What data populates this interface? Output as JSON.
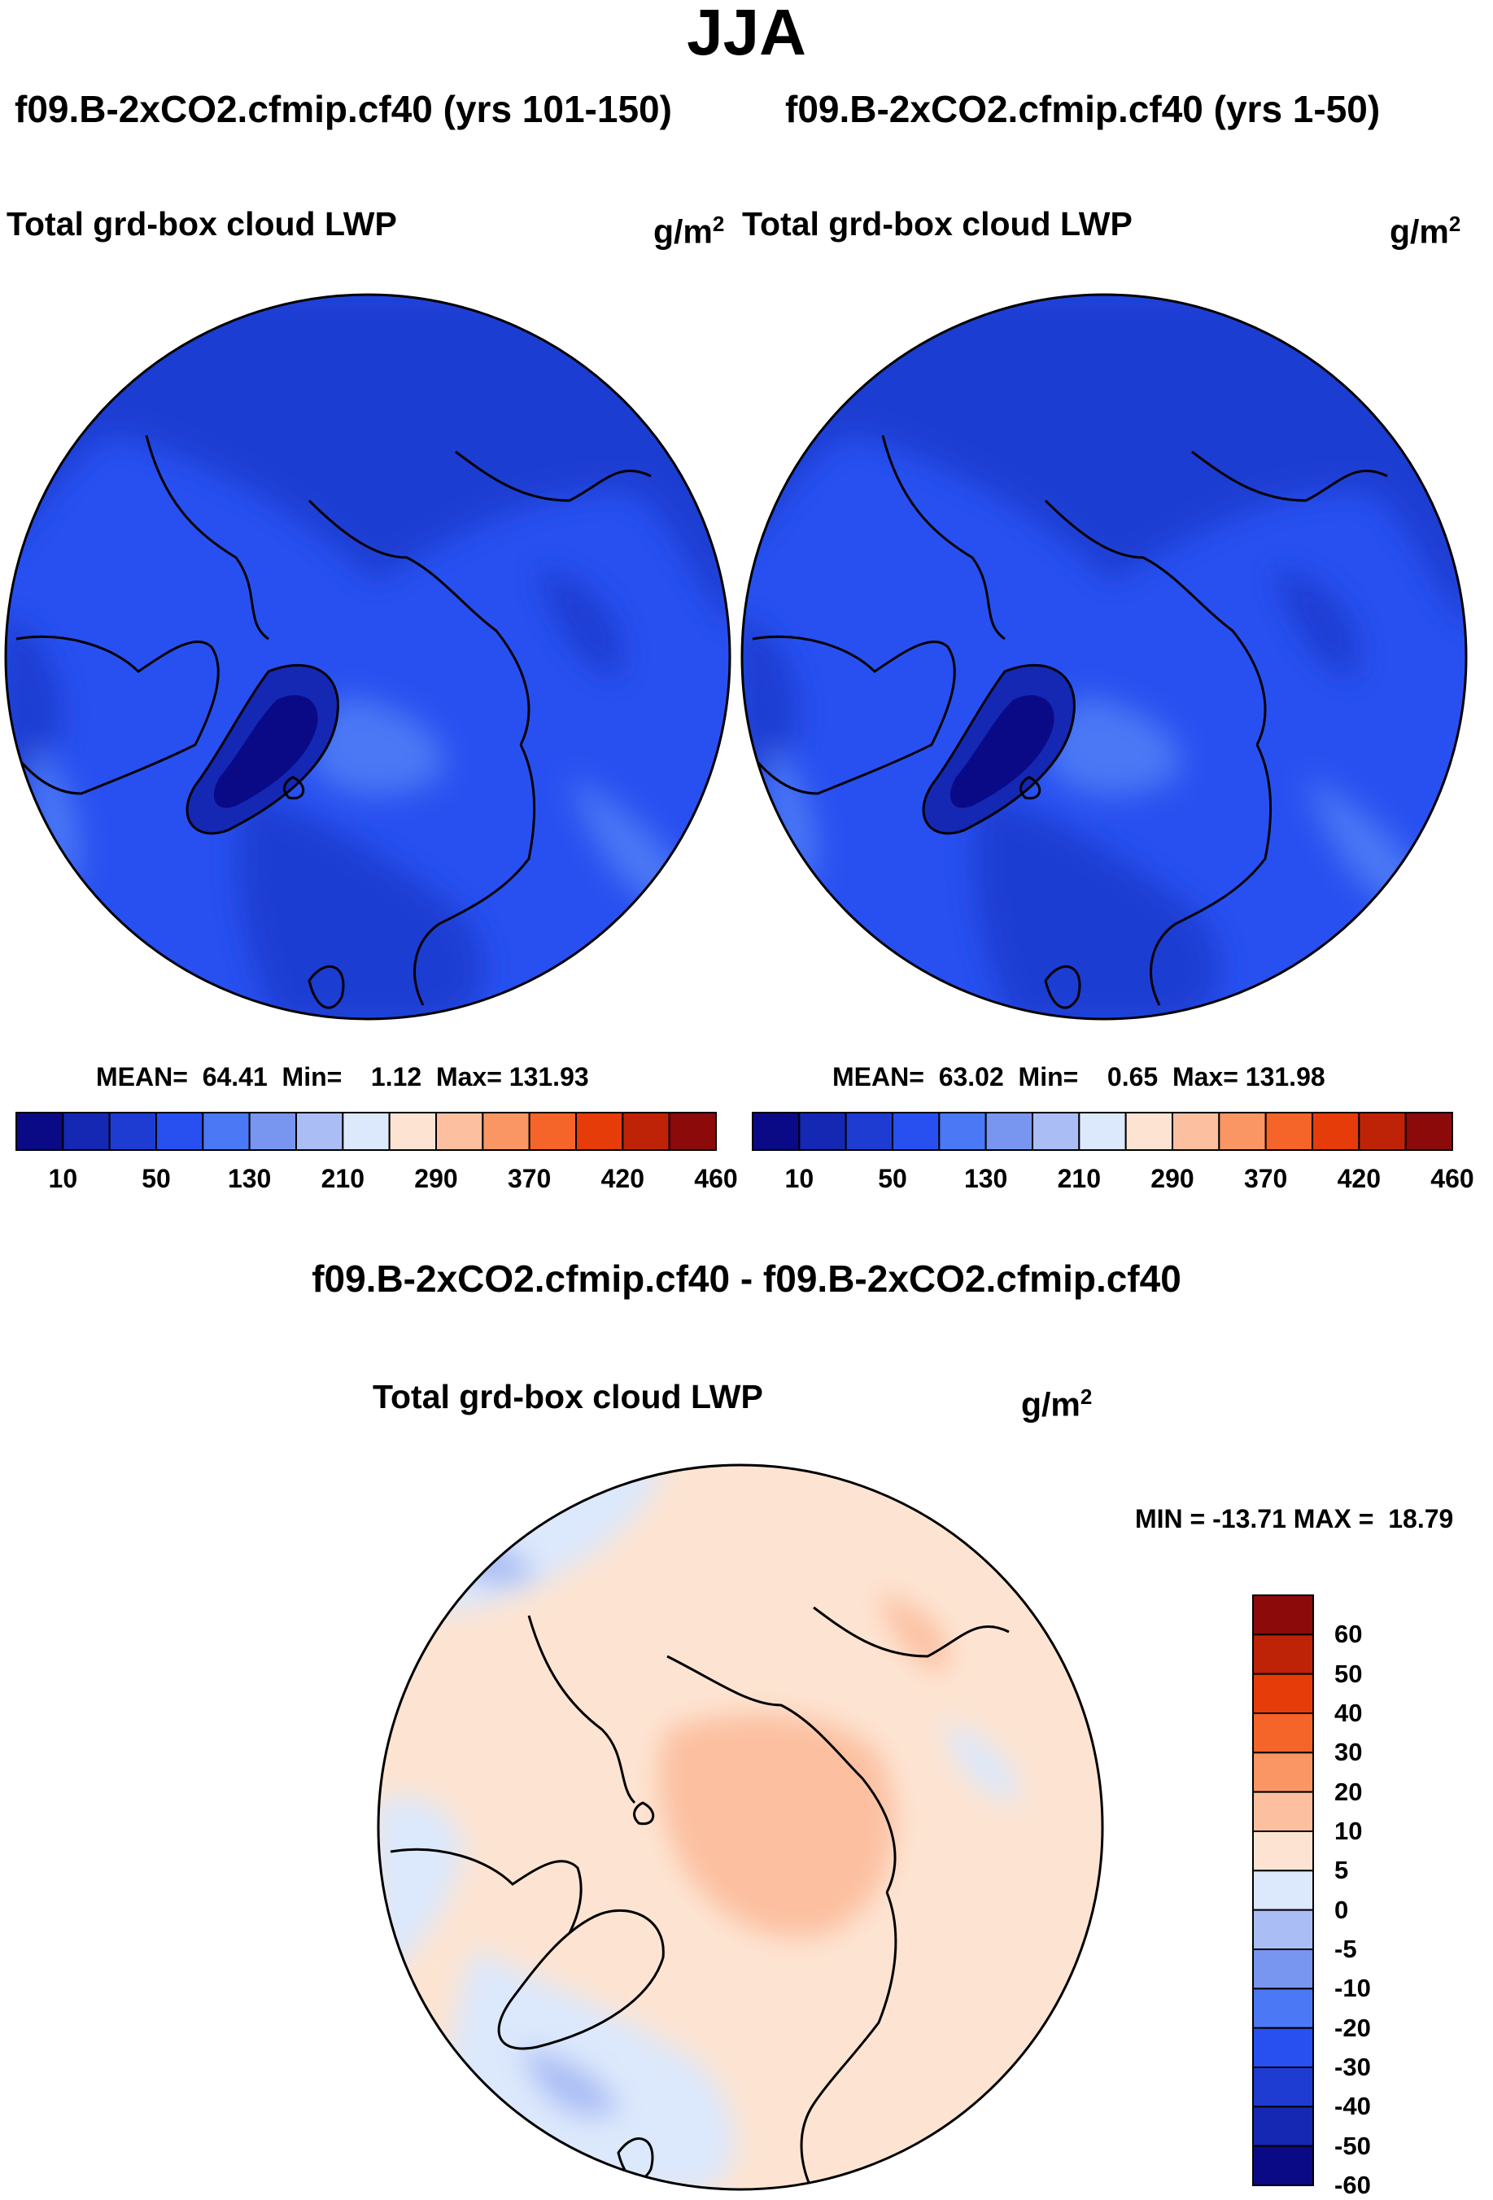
{
  "figure": {
    "title": "JJA",
    "panels": [
      {
        "run": "f09.B-2xCO2.cfmip.cf40 (yrs 101-150)",
        "variable": "Total grd-box cloud LWP",
        "units": "g/m",
        "units_sup": "2",
        "stats": {
          "mean_label": "MEAN=",
          "mean": "64.41",
          "min_label": "Min=",
          "min": "1.12",
          "max_label": "Max=",
          "max": "131.93"
        }
      },
      {
        "run": "f09.B-2xCO2.cfmip.cf40 (yrs 1-50)",
        "variable": "Total grd-box cloud LWP",
        "units": "g/m",
        "units_sup": "2",
        "stats": {
          "mean_label": "MEAN=",
          "mean": "63.02",
          "min_label": "Min=",
          "min": "0.65",
          "max_label": "Max=",
          "max": "131.98"
        }
      }
    ],
    "abs_colorbar": {
      "colors": [
        "#0a0a87",
        "#1428b4",
        "#1e3cd2",
        "#2850f0",
        "#4b78f5",
        "#7896f0",
        "#aabef5",
        "#dce8fc",
        "#fde4d2",
        "#fcc0a0",
        "#fa9664",
        "#f56428",
        "#e63c0a",
        "#be2308",
        "#8c0a0a"
      ],
      "tick_labels": [
        "10",
        "50",
        "130",
        "210",
        "290",
        "370",
        "420",
        "460"
      ]
    },
    "diff_panel": {
      "title": "f09.B-2xCO2.cfmip.cf40 - f09.B-2xCO2.cfmip.cf40",
      "variable": "Total grd-box cloud LWP",
      "units": "g/m",
      "units_sup": "2",
      "range_text": "MIN = -13.71 MAX =  18.79"
    },
    "diff_colorbar": {
      "colors_top_to_bottom": [
        "#8c0a0a",
        "#be2308",
        "#e63c0a",
        "#f56428",
        "#fa9664",
        "#fcc0a0",
        "#fde4d2",
        "#dce8fc",
        "#aabef5",
        "#7896f0",
        "#4b78f5",
        "#2850f0",
        "#1e3cd2",
        "#1428b4",
        "#0a0a87"
      ],
      "labels_top_to_bottom": [
        "60",
        "50",
        "40",
        "30",
        "20",
        "10",
        "5",
        "0",
        "-5",
        "-10",
        "-20",
        "-30",
        "-40",
        "-50",
        "-60"
      ]
    },
    "map_colors": {
      "abs_base": "#2850f0",
      "abs_darker": "#1e3cd2",
      "abs_darkest": "#1428b4",
      "abs_core": "#0a0a87",
      "abs_lighter": "#4b78f5",
      "abs_lightest": "#7896f0",
      "diff_pos_light": "#fde4d2",
      "diff_pos_mid": "#fcc0a0",
      "diff_neg_light": "#dce8fc",
      "diff_neg_mid": "#aabef5"
    }
  }
}
